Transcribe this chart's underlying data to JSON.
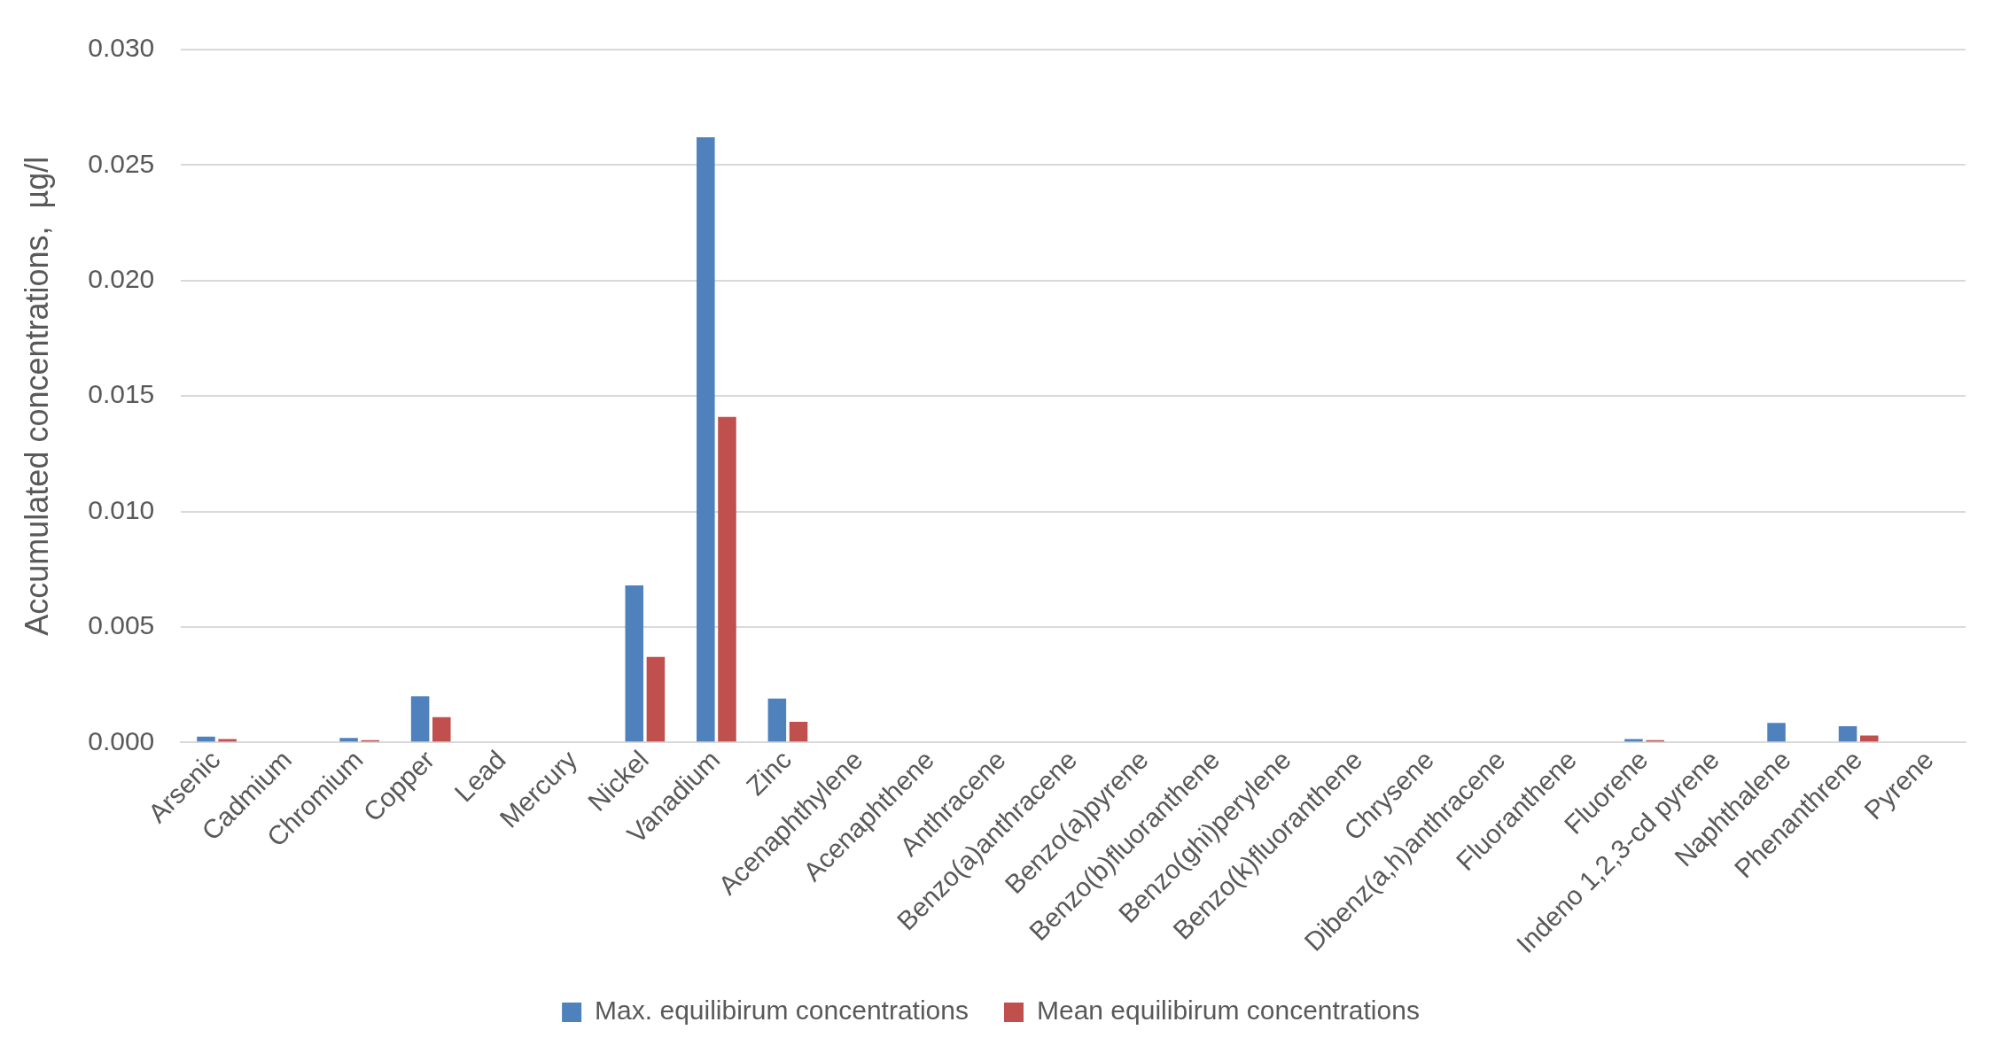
{
  "chart_data": {
    "type": "bar",
    "ylabel": "Accumulated concentrations,  µg/l",
    "categories": [
      "Arsenic",
      "Cadmium",
      "Chromium",
      "Copper",
      "Lead",
      "Mercury",
      "Nickel",
      "Vanadium",
      "Zinc",
      "Acenaphthylene",
      "Acenaphthene",
      "Anthracene",
      "Benzo(a)anthracene",
      "Benzo(a)pyrene",
      "Benzo(b)fluoranthene",
      "Benzo(ghi)perylene",
      "Benzo(k)fluoranthene",
      "Chrysene",
      "Dibenz(a,h)anthracene",
      "Fluoranthene",
      "Fluorene",
      "Indeno 1,2,3-cd pyrene",
      "Naphthalene",
      "Phenanthrene",
      "Pyrene"
    ],
    "series": [
      {
        "name": "Max. equilibirum concentrations",
        "color": "#4f81bd",
        "values": [
          0.00025,
          0,
          0.0002,
          0.002,
          0,
          0,
          0.0068,
          0.0262,
          0.0019,
          0,
          0,
          0,
          0,
          0,
          0,
          0,
          0,
          0,
          0,
          0,
          0.00015,
          0,
          0.00085,
          0.0007,
          0
        ]
      },
      {
        "name": "Mean equilibirum concentrations",
        "color": "#c0504d",
        "values": [
          0.00015,
          0,
          0.0001,
          0.0011,
          0,
          0,
          0.0037,
          0.0141,
          0.0009,
          0,
          0,
          0,
          0,
          0,
          0,
          0,
          0,
          0,
          0,
          0,
          0.0001,
          0,
          0,
          0.0003,
          0
        ]
      }
    ],
    "ylim": [
      0,
      0.03
    ],
    "yticks": [
      {
        "value": 0,
        "label": "0.000"
      },
      0.005,
      {
        "value": 0.01,
        "label": "0.010"
      },
      0.015,
      {
        "value": 0.02,
        "label": "0.020"
      },
      0.025,
      {
        "value": 0.03,
        "label": "0.030"
      }
    ],
    "grid": "y",
    "legend": "bottom"
  }
}
